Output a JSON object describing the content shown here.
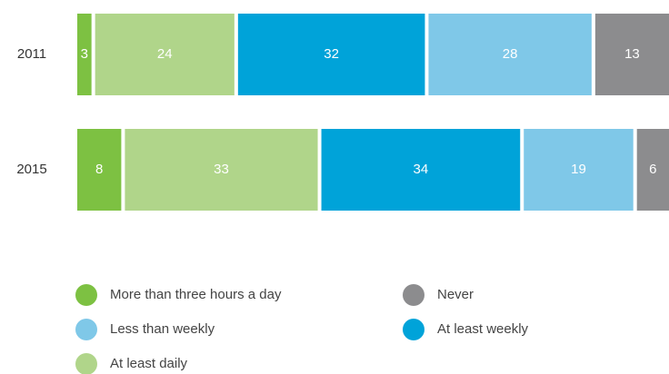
{
  "chart_data": {
    "type": "stacked-bar-horizontal",
    "categories": [
      "2011",
      "2015"
    ],
    "series": [
      {
        "name": "More than three hours a day",
        "color": "#7dc142",
        "values": [
          3,
          8
        ]
      },
      {
        "name": "At least daily",
        "color": "#b0d58a",
        "values": [
          24,
          33
        ]
      },
      {
        "name": "At least weekly",
        "color": "#00a3d9",
        "values": [
          32,
          34
        ]
      },
      {
        "name": "Less than weekly",
        "color": "#7fc8e8",
        "values": [
          28,
          19
        ]
      },
      {
        "name": "Never",
        "color": "#8c8c8e",
        "values": [
          13,
          6
        ]
      }
    ]
  }
}
